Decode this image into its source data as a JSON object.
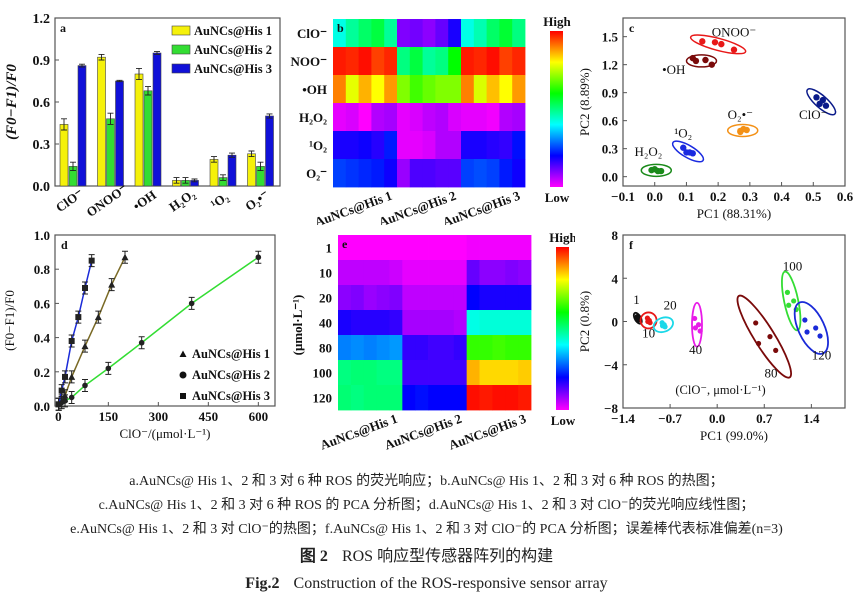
{
  "chart_data": [
    {
      "id": "a",
      "type": "bar",
      "panel_label": "a",
      "title": "",
      "xlabel": "",
      "ylabel": "(F0−F1)/F0",
      "ylim": [
        0,
        1.2
      ],
      "yticks": [
        "0.0",
        "0.3",
        "0.6",
        "0.9",
        "1.2"
      ],
      "categories": [
        "ClO⁻",
        "ONOO⁻",
        "•OH",
        "H₂O₂",
        "¹O₂",
        "O₂•⁻"
      ],
      "legend_position": "top-right",
      "series": [
        {
          "name": "AuNCs@His 1",
          "color": "#f5f10a",
          "values": [
            0.44,
            0.92,
            0.8,
            0.04,
            0.19,
            0.23
          ],
          "errors": [
            0.04,
            0.02,
            0.04,
            0.02,
            0.02,
            0.02
          ]
        },
        {
          "name": "AuNCs@His 2",
          "color": "#33dd33",
          "values": [
            0.14,
            0.48,
            0.68,
            0.04,
            0.06,
            0.14
          ],
          "errors": [
            0.03,
            0.04,
            0.03,
            0.02,
            0.02,
            0.03
          ]
        },
        {
          "name": "AuNCs@His 3",
          "color": "#1010d8",
          "values": [
            0.86,
            0.75,
            0.95,
            0.04,
            0.22,
            0.5
          ],
          "errors": [
            0.01,
            0.005,
            0.01,
            0.01,
            0.015,
            0.015
          ]
        }
      ]
    },
    {
      "id": "b",
      "type": "heatmap",
      "panel_label": "b",
      "rows": [
        "ClO⁻",
        "ONOO⁻",
        "•OH",
        "H₂O₂",
        "¹O₂",
        "O₂⁻"
      ],
      "column_groups": [
        "AuNCs@His 1",
        "AuNCs@His 2",
        "AuNCs@His 3"
      ],
      "replicates_per_group": 5,
      "colorbar": {
        "high": "High",
        "low": "Low"
      },
      "values": [
        [
          0.42,
          0.48,
          0.52,
          0.55,
          0.48,
          0.1,
          0.11,
          0.09,
          0.12,
          0.18,
          0.42,
          0.46,
          0.52,
          0.56,
          0.5
        ],
        [
          0.98,
          0.97,
          0.99,
          0.95,
          0.97,
          0.5,
          0.55,
          0.48,
          0.5,
          0.6,
          0.98,
          0.97,
          0.99,
          0.95,
          0.97
        ],
        [
          0.9,
          0.78,
          0.86,
          0.8,
          0.88,
          0.7,
          0.65,
          0.68,
          0.7,
          0.7,
          0.9,
          0.77,
          0.85,
          0.8,
          0.88
        ],
        [
          0.02,
          0.03,
          0.0,
          0.06,
          0.07,
          0.02,
          0.03,
          0.05,
          0.06,
          0.03,
          0.02,
          0.02,
          0.01,
          0.06,
          0.07
        ],
        [
          0.18,
          0.18,
          0.19,
          0.17,
          0.22,
          0.02,
          0.02,
          0.03,
          0.06,
          0.06,
          0.18,
          0.18,
          0.17,
          0.16,
          0.21
        ],
        [
          0.25,
          0.24,
          0.23,
          0.22,
          0.19,
          0.08,
          0.14,
          0.14,
          0.13,
          0.13,
          0.25,
          0.26,
          0.25,
          0.22,
          0.19
        ]
      ]
    },
    {
      "id": "c",
      "type": "scatter",
      "panel_label": "c",
      "xlabel": "PC1 (88.31%)",
      "ylabel": "PC2 (8.89%)",
      "xlim": [
        -0.1,
        0.6
      ],
      "ylim": [
        -0.1,
        1.7
      ],
      "xticks": [
        "−0.1",
        "0.0",
        "0.1",
        "0.2",
        "0.3",
        "0.4",
        "0.5",
        "0.6"
      ],
      "yticks": [
        "0.0",
        "0.3",
        "0.6",
        "0.9",
        "1.2",
        "1.5"
      ],
      "groups": [
        {
          "name": "ONOO⁻",
          "color": "#e81818",
          "points": [
            [
              0.15,
              1.45
            ],
            [
              0.19,
              1.44
            ],
            [
              0.21,
              1.42
            ],
            [
              0.25,
              1.36
            ]
          ],
          "label_at": [
            0.25,
            1.5
          ]
        },
        {
          "name": "•OH",
          "color": "#7a0a0a",
          "points": [
            [
              0.12,
              1.27
            ],
            [
              0.16,
              1.25
            ],
            [
              0.18,
              1.2
            ],
            [
              0.13,
              1.24
            ]
          ],
          "label_at": [
            0.06,
            1.1
          ]
        },
        {
          "name": "ClO⁻",
          "color": "#0a1a8a",
          "points": [
            [
              0.51,
              0.85
            ],
            [
              0.53,
              0.82
            ],
            [
              0.52,
              0.78
            ],
            [
              0.54,
              0.76
            ]
          ],
          "label_at": [
            0.5,
            0.62
          ]
        },
        {
          "name": "O₂•⁻",
          "color": "#f39015",
          "points": [
            [
              0.27,
              0.49
            ],
            [
              0.28,
              0.51
            ],
            [
              0.29,
              0.5
            ],
            [
              0.27,
              0.48
            ]
          ],
          "label_at": [
            0.27,
            0.62
          ]
        },
        {
          "name": "¹O₂",
          "color": "#1a2ae0",
          "points": [
            [
              0.09,
              0.31
            ],
            [
              0.1,
              0.26
            ],
            [
              0.11,
              0.26
            ],
            [
              0.12,
              0.25
            ]
          ],
          "label_at": [
            0.09,
            0.42
          ]
        },
        {
          "name": "H₂O₂",
          "color": "#1a8a1a",
          "points": [
            [
              -0.01,
              0.07
            ],
            [
              0.01,
              0.06
            ],
            [
              0.02,
              0.06
            ],
            [
              0.0,
              0.08
            ]
          ],
          "label_at": [
            -0.02,
            0.22
          ]
        }
      ]
    },
    {
      "id": "d",
      "type": "scatter",
      "panel_label": "d",
      "xlabel": "ClO⁻/(μmol·L⁻¹)",
      "ylabel": "(F0−F1)/F0",
      "xlim": [
        -10,
        650
      ],
      "ylim": [
        0,
        1.0
      ],
      "xticks": [
        "0",
        "150",
        "300",
        "450",
        "600"
      ],
      "yticks": [
        "0.0",
        "0.2",
        "0.4",
        "0.6",
        "0.8",
        "1.0"
      ],
      "legend_position": "center-right",
      "series": [
        {
          "name": "AuNCs@His 1",
          "marker": "triangle",
          "line_color": "#7a6a25",
          "x": [
            1,
            10,
            20,
            40,
            80,
            120,
            160,
            200
          ],
          "y": [
            0.01,
            0.03,
            0.06,
            0.17,
            0.35,
            0.52,
            0.71,
            0.87
          ]
        },
        {
          "name": "AuNCs@His 2",
          "marker": "circle",
          "line_color": "#33dd33",
          "x": [
            1,
            10,
            20,
            40,
            80,
            150,
            250,
            400,
            600
          ],
          "y": [
            0.01,
            0.02,
            0.03,
            0.05,
            0.12,
            0.22,
            0.37,
            0.6,
            0.87
          ]
        },
        {
          "name": "AuNCs@His 3",
          "marker": "square",
          "line_color": "#1a2ad8",
          "x": [
            1,
            10,
            20,
            40,
            60,
            80,
            100
          ],
          "y": [
            0.01,
            0.09,
            0.17,
            0.38,
            0.52,
            0.69,
            0.85
          ]
        }
      ]
    },
    {
      "id": "e",
      "type": "heatmap",
      "panel_label": "e",
      "ylabel": "(μmol·L⁻¹)",
      "rows": [
        "1",
        "10",
        "20",
        "40",
        "80",
        "100",
        "120"
      ],
      "column_groups": [
        "AuNCs@His 1",
        "AuNCs@His 2",
        "AuNCs@His 3"
      ],
      "replicates_per_group": 5,
      "colorbar": {
        "high": "High",
        "low": "Low"
      },
      "values": [
        [
          0.0,
          0.0,
          0.0,
          0.0,
          0.0,
          0.0,
          0.0,
          0.0,
          0.0,
          0.0,
          0.01,
          0.01,
          0.01,
          0.01,
          0.01
        ],
        [
          0.05,
          0.05,
          0.05,
          0.05,
          0.04,
          0.02,
          0.02,
          0.02,
          0.02,
          0.02,
          0.12,
          0.09,
          0.09,
          0.1,
          0.09
        ],
        [
          0.09,
          0.1,
          0.08,
          0.09,
          0.1,
          0.05,
          0.05,
          0.05,
          0.05,
          0.05,
          0.2,
          0.18,
          0.18,
          0.18,
          0.18
        ],
        [
          0.18,
          0.17,
          0.17,
          0.17,
          0.16,
          0.07,
          0.07,
          0.07,
          0.07,
          0.06,
          0.42,
          0.43,
          0.43,
          0.43,
          0.43
        ],
        [
          0.3,
          0.31,
          0.3,
          0.31,
          0.32,
          0.16,
          0.16,
          0.15,
          0.15,
          0.16,
          0.64,
          0.64,
          0.65,
          0.64,
          0.64
        ],
        [
          0.5,
          0.51,
          0.51,
          0.5,
          0.5,
          0.15,
          0.15,
          0.15,
          0.15,
          0.15,
          0.86,
          0.83,
          0.83,
          0.83,
          0.84
        ],
        [
          0.51,
          0.5,
          0.51,
          0.51,
          0.51,
          0.2,
          0.21,
          0.2,
          0.2,
          0.2,
          0.99,
          0.98,
          0.99,
          0.99,
          0.98
        ]
      ]
    },
    {
      "id": "f",
      "type": "scatter",
      "panel_label": "f",
      "xlabel": "PC1 (99.0%)",
      "ylabel": "PC2 (0.8%)",
      "annotation": "(ClO⁻, μmol·L⁻¹)",
      "xlim": [
        -1.4,
        1.9
      ],
      "ylim": [
        -8,
        8
      ],
      "xticks": [
        "−1.4",
        "−0.7",
        "0.0",
        "0.7",
        "1.4"
      ],
      "yticks": [
        "−8",
        "−4",
        "0",
        "4",
        "8"
      ],
      "groups": [
        {
          "name": "1",
          "color": "#111111",
          "center": [
            -1.18,
            0.3
          ],
          "label_at": [
            -1.2,
            1.6
          ]
        },
        {
          "name": "10",
          "color": "#e81818",
          "center": [
            -1.02,
            0.1
          ],
          "label_at": [
            -1.02,
            -1.5
          ]
        },
        {
          "name": "20",
          "color": "#1ad8e8",
          "center": [
            -0.8,
            -0.3
          ],
          "label_at": [
            -0.7,
            1.1
          ]
        },
        {
          "name": "40",
          "color": "#e81ae8",
          "center": [
            -0.3,
            -0.3
          ],
          "label_at": [
            -0.32,
            -3.0
          ]
        },
        {
          "name": "80",
          "color": "#7a0a0a",
          "center": [
            0.7,
            -1.4
          ],
          "label_at": [
            0.8,
            -5.2
          ]
        },
        {
          "name": "100",
          "color": "#33dd33",
          "center": [
            1.1,
            1.9
          ],
          "label_at": [
            1.12,
            4.7
          ]
        },
        {
          "name": "120",
          "color": "#1a2ad8",
          "center": [
            1.4,
            -0.6
          ],
          "label_at": [
            1.55,
            -3.5
          ]
        }
      ]
    }
  ],
  "caption": {
    "lines": [
      "a.AuNCs@ His 1、2 和 3 对 6 种 ROS 的荧光响应；b.AuNCs@ His 1、2 和 3 对 6 种 ROS 的热图；",
      "c.AuNCs@ His 1、2 和 3 对 6 种 ROS 的 PCA 分析图；d.AuNCs@ His 1、2 和 3 对 ClO⁻的荧光响应线性图；",
      "e.AuNCs@ His 1、2 和 3 对 ClO⁻的热图；f.AuNCs@ His 1、2 和 3 对 ClO⁻的 PCA 分析图；误差棒代表标准偏差(n=3)"
    ],
    "fig_cn_num": "图 2",
    "fig_cn_title": "ROS 响应型传感器阵列的构建",
    "fig_en_num": "Fig.2",
    "fig_en_title": "Construction of the ROS-responsive sensor array"
  }
}
